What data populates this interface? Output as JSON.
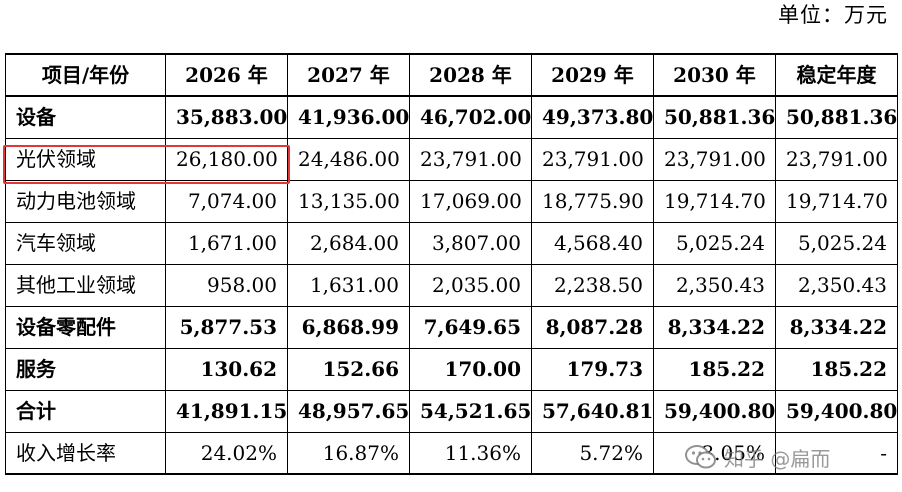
{
  "unit_label": "单位：万元",
  "table": {
    "headers": [
      "项目/年份",
      "2026 年",
      "2027 年",
      "2028 年",
      "2029 年",
      "2030 年",
      "稳定年度"
    ],
    "rows": [
      {
        "label": "设备",
        "bold": true,
        "values": [
          "35,883.00",
          "41,936.00",
          "46,702.00",
          "49,373.80",
          "50,881.36",
          "50,881.36"
        ]
      },
      {
        "label": "光伏领域",
        "bold": false,
        "highlighted": true,
        "values": [
          "26,180.00",
          "24,486.00",
          "23,791.00",
          "23,791.00",
          "23,791.00",
          "23,791.00"
        ]
      },
      {
        "label": "动力电池领域",
        "bold": false,
        "values": [
          "7,074.00",
          "13,135.00",
          "17,069.00",
          "18,775.90",
          "19,714.70",
          "19,714.70"
        ]
      },
      {
        "label": "汽车领域",
        "bold": false,
        "values": [
          "1,671.00",
          "2,684.00",
          "3,807.00",
          "4,568.40",
          "5,025.24",
          "5,025.24"
        ]
      },
      {
        "label": "其他工业领域",
        "bold": false,
        "values": [
          "958.00",
          "1,631.00",
          "2,035.00",
          "2,238.50",
          "2,350.43",
          "2,350.43"
        ]
      },
      {
        "label": "设备零配件",
        "bold": true,
        "values": [
          "5,877.53",
          "6,868.99",
          "7,649.65",
          "8,087.28",
          "8,334.22",
          "8,334.22"
        ]
      },
      {
        "label": "服务",
        "bold": true,
        "values": [
          "130.62",
          "152.66",
          "170.00",
          "179.73",
          "185.22",
          "185.22"
        ]
      },
      {
        "label": "合计",
        "bold": true,
        "values": [
          "41,891.15",
          "48,957.65",
          "54,521.65",
          "57,640.81",
          "59,400.80",
          "59,400.80"
        ]
      },
      {
        "label": "收入增长率",
        "bold": false,
        "values": [
          "24.02%",
          "16.87%",
          "11.36%",
          "5.72%",
          "3.05%",
          "-"
        ]
      }
    ]
  },
  "highlight_color": "#e0373a",
  "watermark": {
    "text": "知乎 @扁而",
    "icon": "wechat-icon"
  }
}
